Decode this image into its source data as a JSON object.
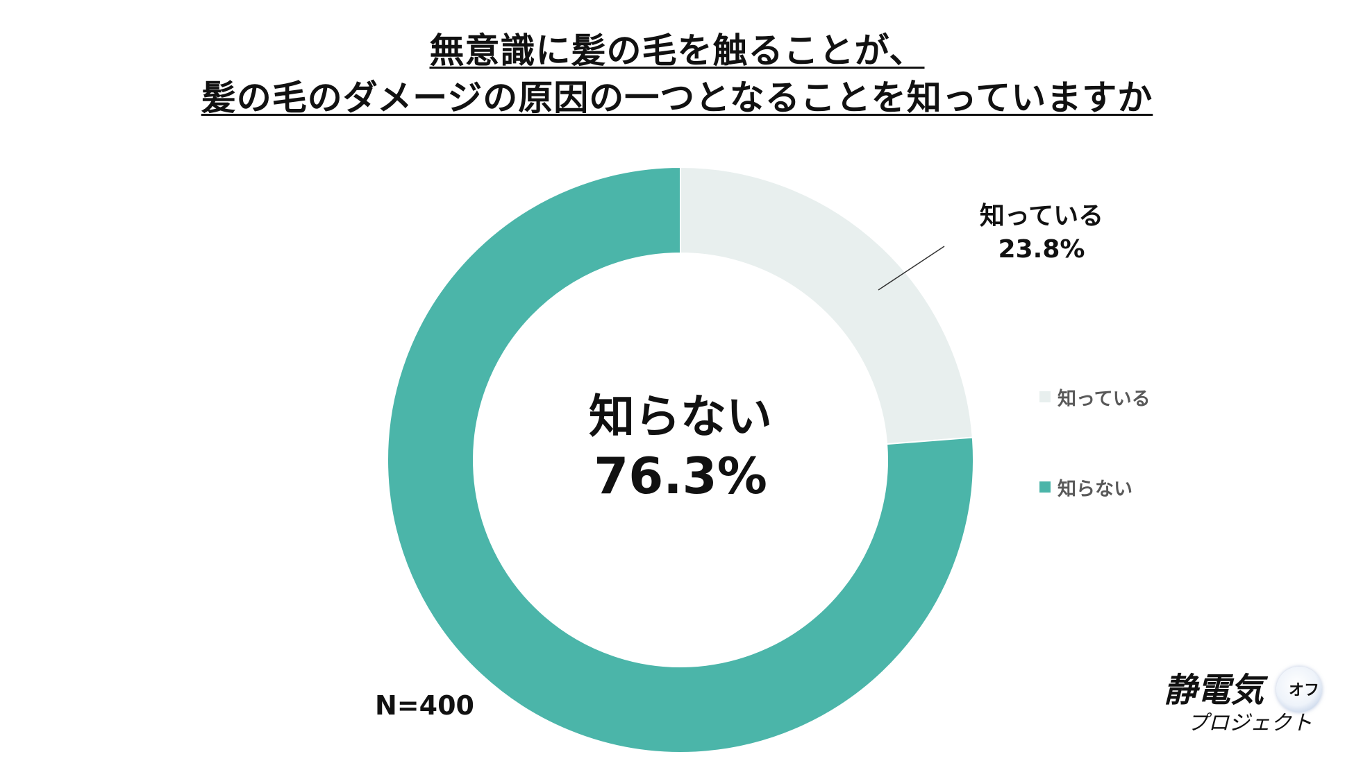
{
  "chart_data": {
    "type": "pie",
    "variant": "donut",
    "title": [
      "無意識に髪の毛を触ることが、",
      "髪の毛のダメージの原因の一つとなることを知っていますか"
    ],
    "categories": [
      "知っている",
      "知らない"
    ],
    "values": [
      23.8,
      76.3
    ],
    "value_labels": [
      "23.8%",
      "76.3%"
    ],
    "colors": {
      "知っている": "#e8efee",
      "知らない": "#4bb5a9"
    },
    "legend": {
      "placement": "right",
      "items": [
        {
          "label": "知っている",
          "color": "#e8efee"
        },
        {
          "label": "知らない",
          "color": "#4bb5a9"
        }
      ]
    },
    "callout": {
      "label": "知っている",
      "value": "23.8%"
    },
    "center": {
      "label": "知らない",
      "value": "76.3%"
    },
    "sample_size": "N=400"
  },
  "logo": {
    "main": "静電気",
    "sub": "プロジェクト",
    "badge": "オフ"
  }
}
